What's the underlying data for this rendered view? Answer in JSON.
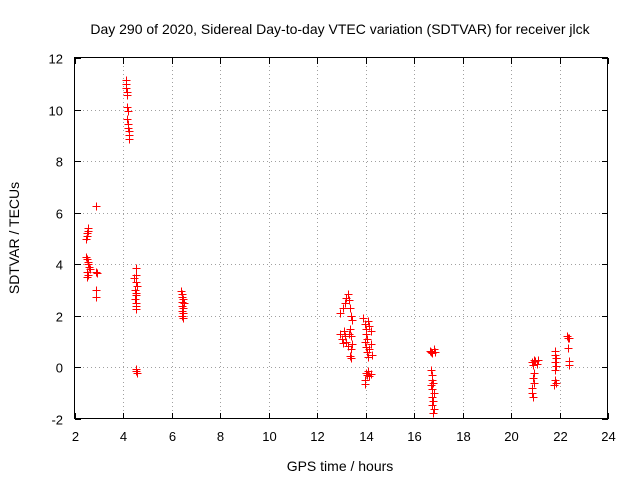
{
  "chart_data": {
    "type": "scatter",
    "title": "Day 290 of 2020, Sidereal Day-to-day VTEC variation (SDTVAR) for receiver jlck",
    "xlabel": "GPS time / hours",
    "ylabel": "SDTVAR / TECUs",
    "xlim": [
      2,
      24
    ],
    "ylim": [
      -2,
      12
    ],
    "x_ticks": [
      "2",
      "4",
      "6",
      "8",
      "10",
      "12",
      "14",
      "16",
      "18",
      "20",
      "22",
      "24"
    ],
    "y_ticks": [
      "-2",
      "0",
      "2",
      "4",
      "6",
      "8",
      "10",
      "12"
    ],
    "grid": true,
    "marker": "+",
    "color": "#ff0000",
    "series": [
      {
        "name": "SDTVAR",
        "points": [
          [
            2.45,
            5.0
          ],
          [
            2.48,
            5.1
          ],
          [
            2.5,
            5.2
          ],
          [
            2.52,
            5.3
          ],
          [
            2.55,
            5.4
          ],
          [
            2.47,
            4.3
          ],
          [
            2.5,
            4.2
          ],
          [
            2.52,
            4.1
          ],
          [
            2.55,
            4.0
          ],
          [
            2.58,
            3.9
          ],
          [
            2.6,
            3.8
          ],
          [
            2.5,
            3.7
          ],
          [
            2.55,
            3.6
          ],
          [
            2.5,
            3.5
          ],
          [
            2.85,
            6.25
          ],
          [
            2.85,
            3.7
          ],
          [
            2.9,
            3.65
          ],
          [
            2.85,
            3.0
          ],
          [
            2.88,
            2.75
          ],
          [
            4.1,
            11.15
          ],
          [
            4.1,
            11.0
          ],
          [
            4.12,
            10.85
          ],
          [
            4.14,
            10.7
          ],
          [
            4.16,
            10.55
          ],
          [
            4.15,
            10.1
          ],
          [
            4.17,
            9.95
          ],
          [
            4.15,
            9.65
          ],
          [
            4.18,
            9.45
          ],
          [
            4.2,
            9.3
          ],
          [
            4.22,
            9.15
          ],
          [
            4.22,
            9.0
          ],
          [
            4.24,
            8.85
          ],
          [
            4.5,
            3.85
          ],
          [
            4.52,
            3.6
          ],
          [
            4.45,
            3.45
          ],
          [
            4.5,
            3.3
          ],
          [
            4.55,
            3.15
          ],
          [
            4.48,
            3.0
          ],
          [
            4.5,
            2.9
          ],
          [
            4.52,
            2.8
          ],
          [
            4.47,
            2.65
          ],
          [
            4.5,
            2.5
          ],
          [
            4.53,
            2.4
          ],
          [
            4.5,
            2.25
          ],
          [
            4.5,
            -0.05
          ],
          [
            4.52,
            -0.12
          ],
          [
            4.55,
            -0.2
          ],
          [
            6.38,
            2.95
          ],
          [
            6.4,
            2.85
          ],
          [
            6.42,
            2.75
          ],
          [
            6.45,
            2.65
          ],
          [
            6.4,
            2.55
          ],
          [
            6.48,
            2.5
          ],
          [
            6.43,
            2.4
          ],
          [
            6.46,
            2.3
          ],
          [
            6.4,
            2.2
          ],
          [
            6.45,
            2.1
          ],
          [
            6.42,
            2.0
          ],
          [
            6.47,
            1.9
          ],
          [
            12.95,
            2.1
          ],
          [
            13.05,
            2.3
          ],
          [
            13.15,
            2.5
          ],
          [
            13.2,
            2.7
          ],
          [
            13.25,
            2.85
          ],
          [
            13.3,
            2.6
          ],
          [
            13.35,
            2.3
          ],
          [
            13.4,
            2.0
          ],
          [
            13.45,
            1.85
          ],
          [
            12.95,
            1.3
          ],
          [
            13.0,
            1.1
          ],
          [
            13.05,
            0.95
          ],
          [
            13.1,
            1.4
          ],
          [
            13.15,
            1.2
          ],
          [
            13.2,
            1.0
          ],
          [
            13.25,
            0.85
          ],
          [
            13.3,
            1.3
          ],
          [
            13.35,
            1.5
          ],
          [
            13.4,
            1.2
          ],
          [
            13.45,
            0.9
          ],
          [
            13.4,
            0.7
          ],
          [
            13.35,
            0.45
          ],
          [
            13.38,
            0.35
          ],
          [
            13.9,
            1.9
          ],
          [
            13.95,
            1.7
          ],
          [
            14.0,
            1.5
          ],
          [
            14.02,
            1.3
          ],
          [
            14.05,
            1.1
          ],
          [
            14.1,
            1.8
          ],
          [
            14.15,
            1.6
          ],
          [
            14.2,
            1.4
          ],
          [
            13.95,
            1.0
          ],
          [
            14.0,
            0.8
          ],
          [
            14.05,
            0.6
          ],
          [
            14.1,
            0.4
          ],
          [
            14.15,
            0.7
          ],
          [
            14.2,
            0.9
          ],
          [
            14.25,
            0.5
          ],
          [
            14.0,
            -0.2
          ],
          [
            14.05,
            -0.3
          ],
          [
            14.1,
            -0.15
          ],
          [
            14.15,
            -0.35
          ],
          [
            14.2,
            -0.25
          ],
          [
            13.95,
            -0.5
          ],
          [
            13.98,
            -0.65
          ],
          [
            16.65,
            0.65
          ],
          [
            16.7,
            0.6
          ],
          [
            16.75,
            0.55
          ],
          [
            16.8,
            0.7
          ],
          [
            16.85,
            0.6
          ],
          [
            16.7,
            -0.1
          ],
          [
            16.72,
            -0.3
          ],
          [
            16.75,
            -0.5
          ],
          [
            16.7,
            -0.7
          ],
          [
            16.78,
            -0.6
          ],
          [
            16.75,
            -0.85
          ],
          [
            16.8,
            -1.0
          ],
          [
            16.73,
            -1.15
          ],
          [
            16.77,
            -1.3
          ],
          [
            16.75,
            -1.45
          ],
          [
            16.8,
            -1.6
          ],
          [
            16.78,
            -1.75
          ],
          [
            20.85,
            0.2
          ],
          [
            20.9,
            0.1
          ],
          [
            20.95,
            0.3
          ],
          [
            21.0,
            0.25
          ],
          [
            21.05,
            0.15
          ],
          [
            21.1,
            0.3
          ],
          [
            20.95,
            -0.2
          ],
          [
            20.9,
            -0.4
          ],
          [
            20.95,
            -0.6
          ],
          [
            20.88,
            -0.8
          ],
          [
            20.85,
            -1.0
          ],
          [
            20.9,
            -1.15
          ],
          [
            21.8,
            0.65
          ],
          [
            21.82,
            0.5
          ],
          [
            21.85,
            0.35
          ],
          [
            21.8,
            0.2
          ],
          [
            21.85,
            0.05
          ],
          [
            21.82,
            -0.1
          ],
          [
            21.8,
            -0.5
          ],
          [
            21.85,
            -0.6
          ],
          [
            21.78,
            -0.7
          ],
          [
            22.3,
            1.2
          ],
          [
            22.35,
            1.15
          ],
          [
            22.4,
            1.15
          ],
          [
            22.35,
            0.75
          ],
          [
            22.38,
            0.25
          ],
          [
            22.4,
            0.1
          ]
        ]
      }
    ]
  }
}
